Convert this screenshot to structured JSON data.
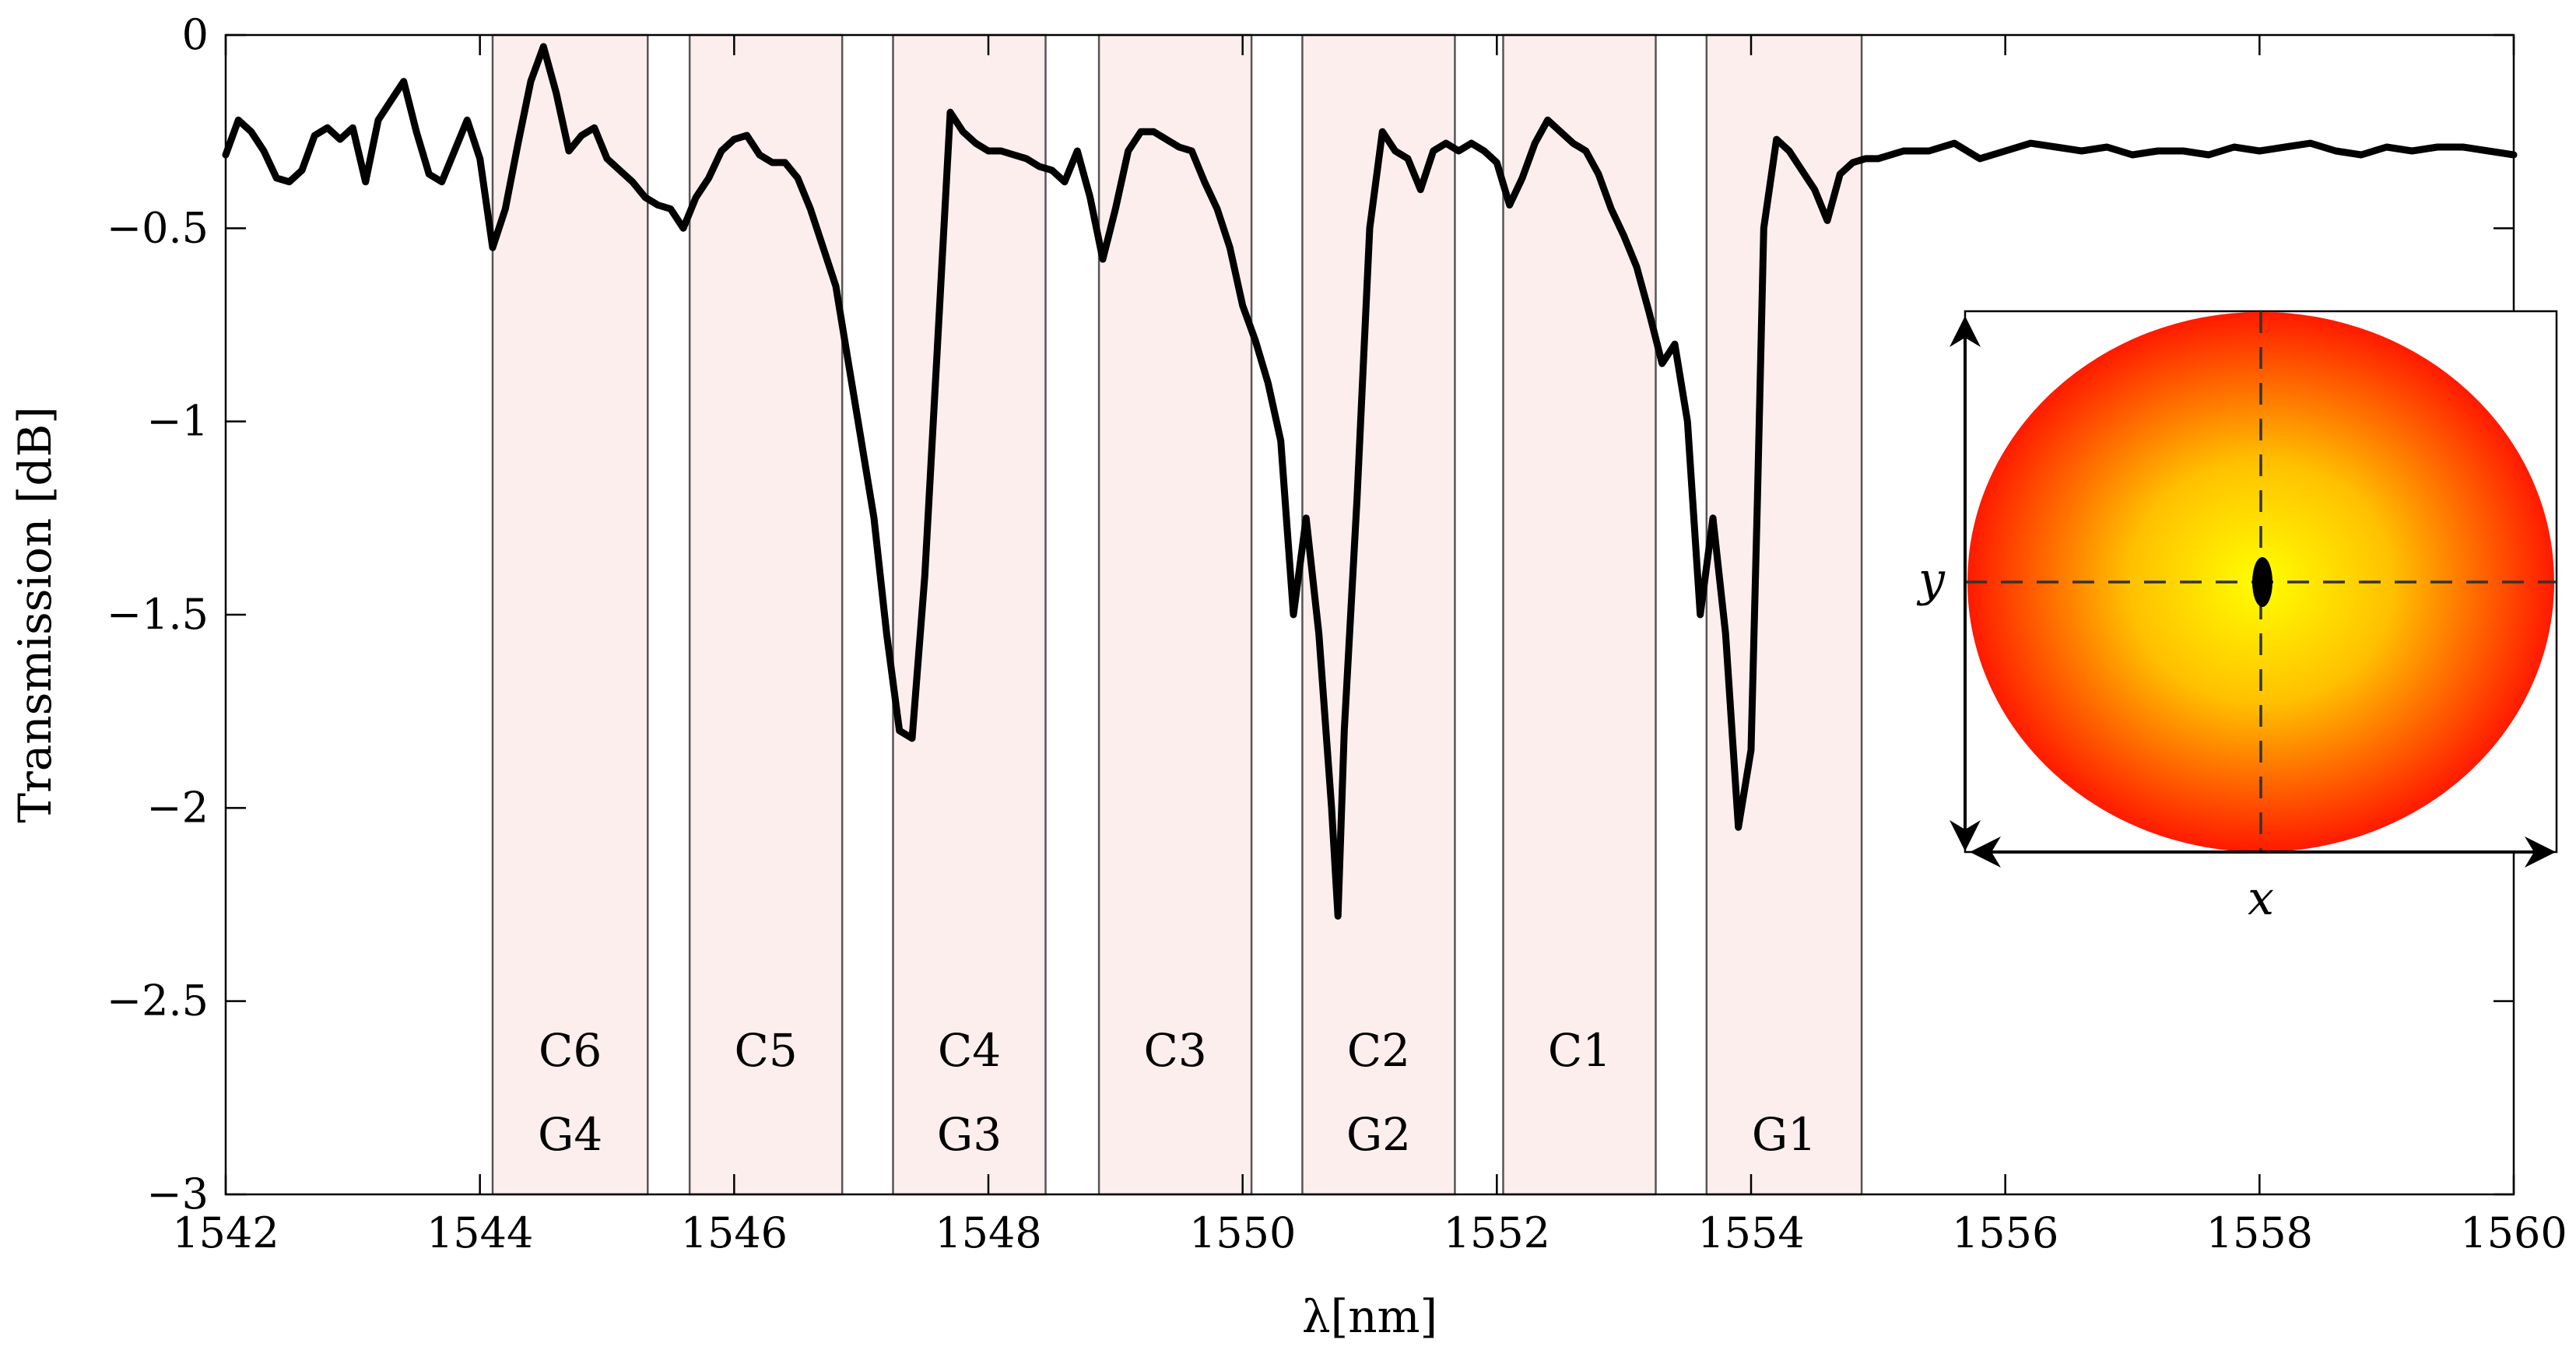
{
  "chart_data": {
    "type": "line",
    "xlabel": "λ[nm]",
    "ylabel": "Transmission [dB]",
    "xlim": [
      1542,
      1560
    ],
    "ylim": [
      -3,
      0
    ],
    "x_ticks": [
      1542,
      1544,
      1546,
      1548,
      1550,
      1552,
      1554,
      1556,
      1558,
      1560
    ],
    "x_tick_labels": [
      "1542",
      "1544",
      "1546",
      "1548",
      "1550",
      "1552",
      "1554",
      "1556",
      "1558",
      "1560"
    ],
    "y_ticks": [
      0,
      -0.5,
      -1,
      -1.5,
      -2,
      -2.5,
      -3
    ],
    "y_tick_labels": [
      "0",
      "−0.5",
      "−1",
      "−1.5",
      "−2",
      "−2.5",
      "−3"
    ],
    "grid": false,
    "line_color": "#000000",
    "band_color": "#fdeeee",
    "series": [
      {
        "x": [
          1542.0,
          1542.1,
          1542.2,
          1542.3,
          1542.4,
          1542.5,
          1542.6,
          1542.7,
          1542.8,
          1542.9,
          1543.0,
          1543.1,
          1543.2,
          1543.3,
          1543.4,
          1543.5,
          1543.6,
          1543.7,
          1543.8,
          1543.9,
          1544.0,
          1544.1,
          1544.2,
          1544.3,
          1544.4,
          1544.5,
          1544.6,
          1544.7,
          1544.8,
          1544.9,
          1545.0,
          1545.1,
          1545.2,
          1545.3,
          1545.4,
          1545.5,
          1545.6,
          1545.7,
          1545.8,
          1545.9,
          1546.0,
          1546.1,
          1546.2,
          1546.3,
          1546.4,
          1546.5,
          1546.6,
          1546.7,
          1546.8,
          1546.9,
          1547.0,
          1547.1,
          1547.2,
          1547.3,
          1547.4,
          1547.5,
          1547.6,
          1547.7,
          1547.8,
          1547.9,
          1548.0,
          1548.1,
          1548.2,
          1548.3,
          1548.4,
          1548.5,
          1548.6,
          1548.7,
          1548.8,
          1548.9,
          1549.0,
          1549.1,
          1549.2,
          1549.3,
          1549.4,
          1549.5,
          1549.6,
          1549.7,
          1549.8,
          1549.9,
          1550.0,
          1550.1,
          1550.2,
          1550.3,
          1550.4,
          1550.5,
          1550.6,
          1550.7,
          1550.75,
          1550.8,
          1550.9,
          1551.0,
          1551.1,
          1551.2,
          1551.3,
          1551.4,
          1551.5,
          1551.6,
          1551.7,
          1551.8,
          1551.9,
          1552.0,
          1552.1,
          1552.2,
          1552.3,
          1552.4,
          1552.5,
          1552.6,
          1552.7,
          1552.8,
          1552.9,
          1553.0,
          1553.1,
          1553.2,
          1553.3,
          1553.4,
          1553.5,
          1553.6,
          1553.7,
          1553.8,
          1553.9,
          1554.0,
          1554.05,
          1554.1,
          1554.2,
          1554.3,
          1554.4,
          1554.5,
          1554.6,
          1554.7,
          1554.8,
          1554.9,
          1555.0,
          1555.2,
          1555.4,
          1555.6,
          1555.8,
          1556.0,
          1556.2,
          1556.4,
          1556.6,
          1556.8,
          1557.0,
          1557.2,
          1557.4,
          1557.6,
          1557.8,
          1558.0,
          1558.2,
          1558.4,
          1558.6,
          1558.8,
          1559.0,
          1559.2,
          1559.4,
          1559.6,
          1559.8,
          1560.0
        ],
        "y": [
          -0.31,
          -0.22,
          -0.25,
          -0.3,
          -0.37,
          -0.38,
          -0.35,
          -0.26,
          -0.24,
          -0.27,
          -0.24,
          -0.38,
          -0.22,
          -0.17,
          -0.12,
          -0.25,
          -0.36,
          -0.38,
          -0.3,
          -0.22,
          -0.32,
          -0.55,
          -0.45,
          -0.28,
          -0.12,
          -0.03,
          -0.15,
          -0.3,
          -0.26,
          -0.24,
          -0.32,
          -0.35,
          -0.38,
          -0.42,
          -0.44,
          -0.45,
          -0.5,
          -0.42,
          -0.37,
          -0.3,
          -0.27,
          -0.26,
          -0.31,
          -0.33,
          -0.33,
          -0.37,
          -0.45,
          -0.55,
          -0.65,
          -0.85,
          -1.05,
          -1.25,
          -1.55,
          -1.8,
          -1.82,
          -1.4,
          -0.8,
          -0.2,
          -0.25,
          -0.28,
          -0.3,
          -0.3,
          -0.31,
          -0.32,
          -0.34,
          -0.35,
          -0.38,
          -0.3,
          -0.42,
          -0.58,
          -0.45,
          -0.3,
          -0.25,
          -0.25,
          -0.27,
          -0.29,
          -0.3,
          -0.38,
          -0.45,
          -0.55,
          -0.7,
          -0.79,
          -0.9,
          -1.05,
          -1.5,
          -1.25,
          -1.55,
          -2.0,
          -2.28,
          -1.8,
          -1.2,
          -0.5,
          -0.25,
          -0.3,
          -0.32,
          -0.4,
          -0.3,
          -0.28,
          -0.3,
          -0.28,
          -0.3,
          -0.33,
          -0.44,
          -0.37,
          -0.28,
          -0.22,
          -0.25,
          -0.28,
          -0.3,
          -0.36,
          -0.45,
          -0.52,
          -0.6,
          -0.72,
          -0.85,
          -0.8,
          -1.0,
          -1.5,
          -1.25,
          -1.55,
          -2.05,
          -1.85,
          -1.2,
          -0.5,
          -0.27,
          -0.3,
          -0.35,
          -0.4,
          -0.48,
          -0.36,
          -0.33,
          -0.32,
          -0.32,
          -0.3,
          -0.3,
          -0.28,
          -0.32,
          -0.3,
          -0.28,
          -0.29,
          -0.3,
          -0.29,
          -0.31,
          -0.3,
          -0.3,
          -0.31,
          -0.29,
          -0.3,
          -0.29,
          -0.28,
          -0.3,
          -0.31,
          -0.29,
          -0.3,
          -0.29,
          -0.29,
          -0.3,
          -0.31
        ]
      }
    ],
    "bands": [
      {
        "x0": 1544.1,
        "x1": 1545.32,
        "label_top": "C6",
        "label_bottom": "G4"
      },
      {
        "x0": 1545.65,
        "x1": 1546.85,
        "label_top": "C5",
        "label_bottom": ""
      },
      {
        "x0": 1547.25,
        "x1": 1548.45,
        "label_top": "C4",
        "label_bottom": "G3"
      },
      {
        "x0": 1548.87,
        "x1": 1550.07,
        "label_top": "C3",
        "label_bottom": ""
      },
      {
        "x0": 1550.47,
        "x1": 1551.67,
        "label_top": "C2",
        "label_bottom": "G2"
      },
      {
        "x0": 1552.05,
        "x1": 1553.25,
        "label_top": "C1",
        "label_bottom": ""
      },
      {
        "x0": 1553.65,
        "x1": 1554.87,
        "label_top": "",
        "label_bottom": "G1"
      }
    ],
    "inset": {
      "x_label": "x",
      "y_label": "y",
      "gradient_center_color": "#ffff00",
      "gradient_edge_color": "#ff1a00"
    }
  }
}
